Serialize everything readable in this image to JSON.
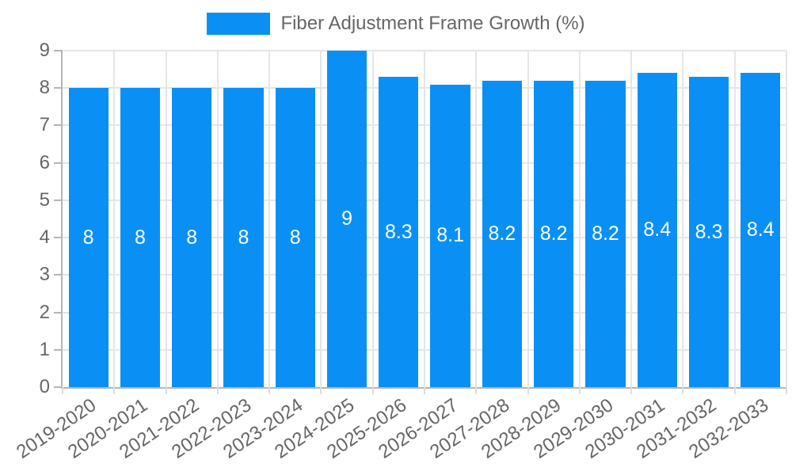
{
  "chart_data": {
    "type": "bar",
    "title": "Fiber Adjustment Frame Growth (%)",
    "legend_position": "top",
    "categories": [
      "2019-2020",
      "2020-2021",
      "2021-2022",
      "2022-2023",
      "2023-2024",
      "2024-2025",
      "2025-2026",
      "2026-2027",
      "2027-2028",
      "2028-2029",
      "2029-2030",
      "2030-2031",
      "2031-2032",
      "2032-2033"
    ],
    "values": [
      8,
      8,
      8,
      8,
      8,
      9,
      8.3,
      8.1,
      8.2,
      8.2,
      8.2,
      8.4,
      8.3,
      8.4
    ],
    "value_labels": [
      "8",
      "8",
      "8",
      "8",
      "8",
      "9",
      "8.3",
      "8.1",
      "8.2",
      "8.2",
      "8.2",
      "8.4",
      "8.3",
      "8.4"
    ],
    "xlabel": "",
    "ylabel": "",
    "ylim": [
      0,
      9
    ],
    "yticks": [
      0,
      1,
      2,
      3,
      4,
      5,
      6,
      7,
      8,
      9
    ],
    "grid": true,
    "colors": {
      "bar": "#0a90f5",
      "value_label": "#ffffff",
      "axis_text": "#666666",
      "grid": "#e5e5e5",
      "axis_line": "#b5b5b5",
      "x_tick": "#dcdcdc"
    }
  }
}
